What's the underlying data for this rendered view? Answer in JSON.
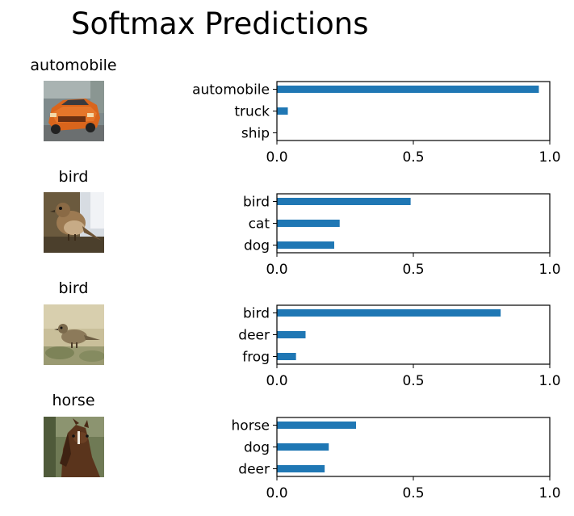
{
  "title": "Softmax Predictions",
  "colors": {
    "bar": "#1f77b4",
    "axis": "#000000"
  },
  "samples": [
    {
      "label": "automobile",
      "image": "red-orange-car-thumbnail"
    },
    {
      "label": "bird",
      "image": "brown-sparrow-thumbnail"
    },
    {
      "label": "bird",
      "image": "small-bird-on-ground-thumbnail"
    },
    {
      "label": "horse",
      "image": "brown-horse-head-thumbnail"
    }
  ],
  "chart_data": [
    {
      "type": "bar",
      "orientation": "horizontal",
      "categories": [
        "automobile",
        "truck",
        "ship"
      ],
      "values": [
        0.96,
        0.04,
        0.0
      ],
      "xlim": [
        0,
        1
      ],
      "xticks": [
        "0.0",
        "0.5",
        "1.0"
      ]
    },
    {
      "type": "bar",
      "orientation": "horizontal",
      "categories": [
        "bird",
        "cat",
        "dog"
      ],
      "values": [
        0.49,
        0.23,
        0.21
      ],
      "xlim": [
        0,
        1
      ],
      "xticks": [
        "0.0",
        "0.5",
        "1.0"
      ]
    },
    {
      "type": "bar",
      "orientation": "horizontal",
      "categories": [
        "bird",
        "deer",
        "frog"
      ],
      "values": [
        0.82,
        0.105,
        0.07
      ],
      "xlim": [
        0,
        1
      ],
      "xticks": [
        "0.0",
        "0.5",
        "1.0"
      ]
    },
    {
      "type": "bar",
      "orientation": "horizontal",
      "categories": [
        "horse",
        "dog",
        "deer"
      ],
      "values": [
        0.29,
        0.19,
        0.175
      ],
      "xlim": [
        0,
        1
      ],
      "xticks": [
        "0.0",
        "0.5",
        "1.0"
      ]
    }
  ]
}
